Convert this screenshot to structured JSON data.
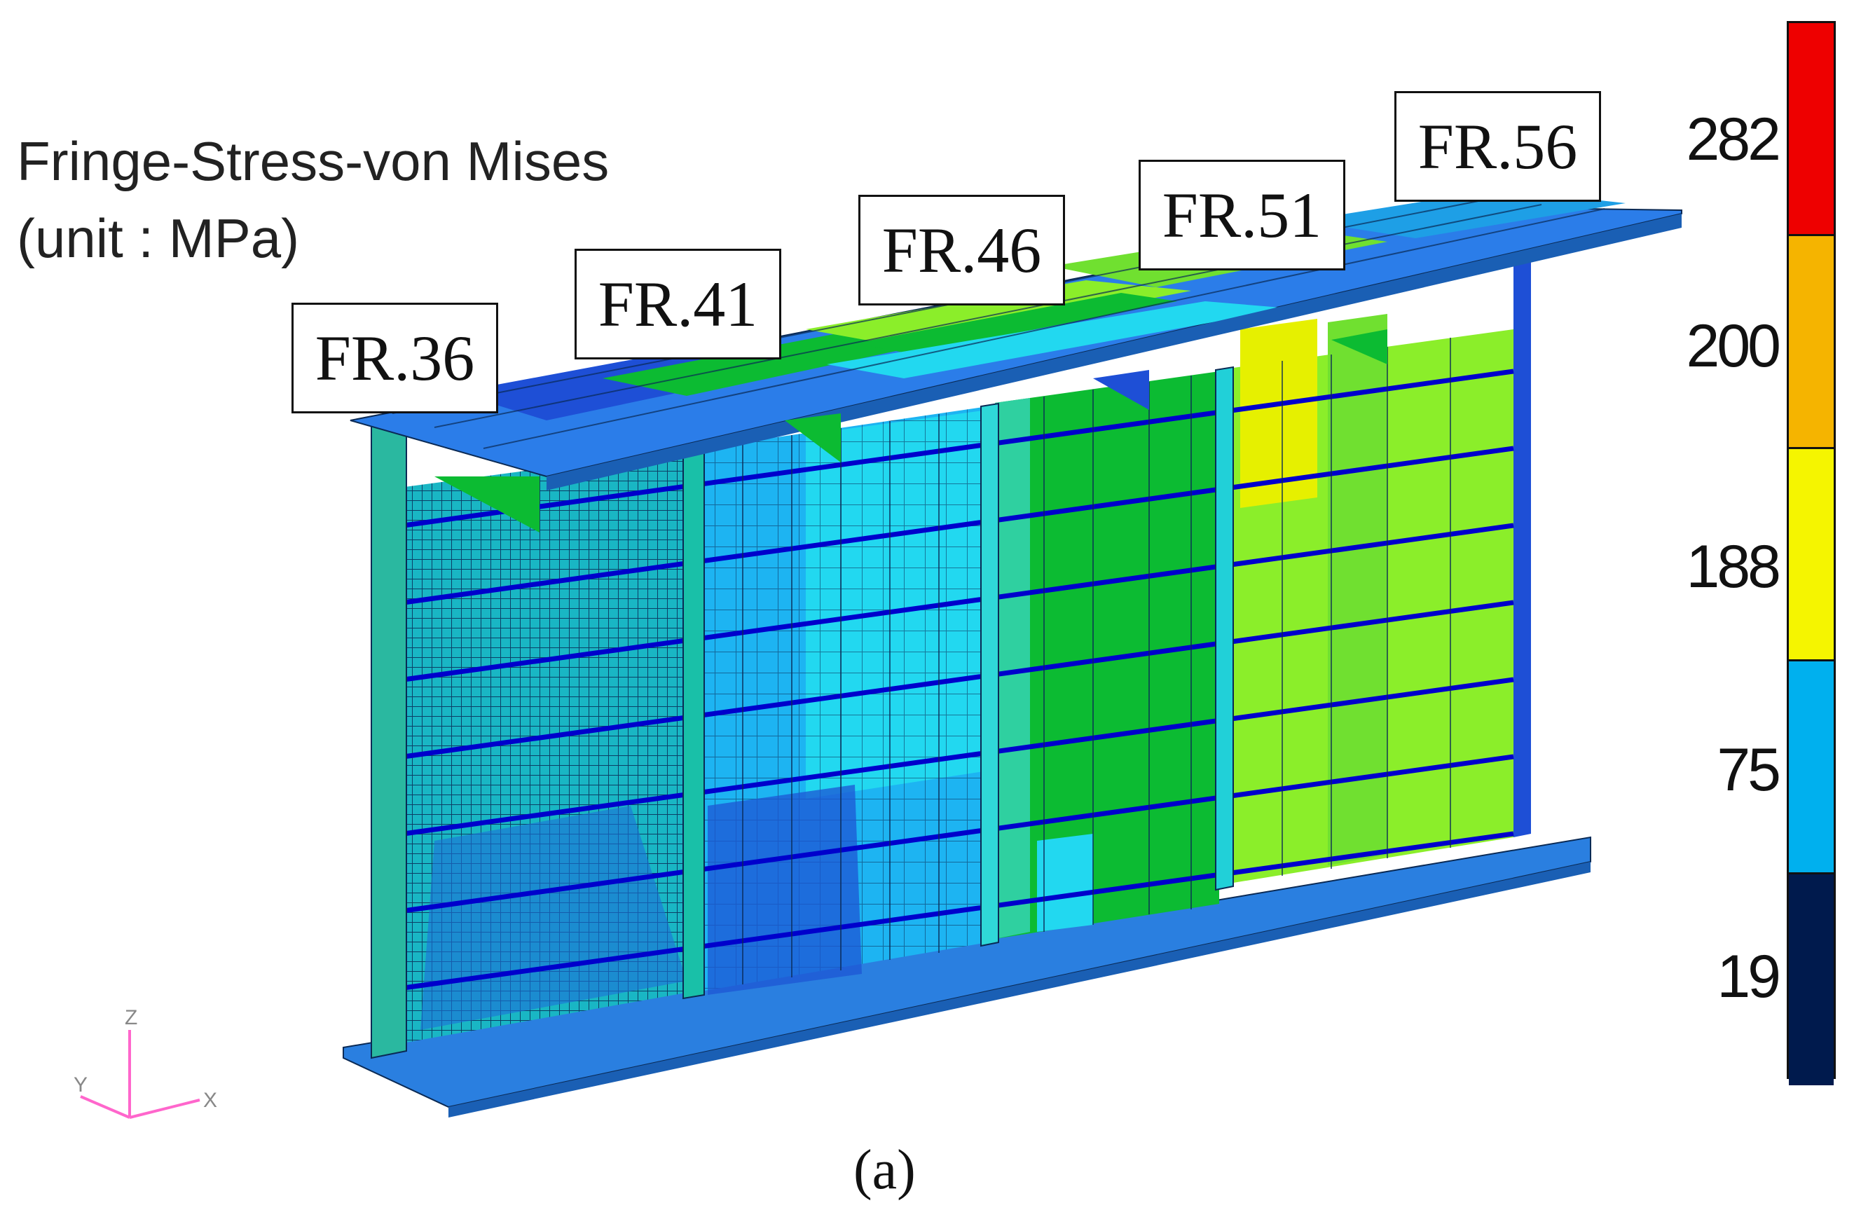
{
  "title": {
    "line1": "Fringe-Stress-von Mises",
    "line2": "(unit : MPa)"
  },
  "frame_labels": [
    "FR.36",
    "FR.41",
    "FR.46",
    "FR.51",
    "FR.56"
  ],
  "legend": {
    "values": [
      "282",
      "200",
      "188",
      "75",
      "19"
    ],
    "colors": [
      "#ee0000",
      "#f5b400",
      "#f5f500",
      "#00b0ee",
      "#001a4d"
    ]
  },
  "axis_triad": {
    "z": "Z",
    "y": "Y",
    "x": "X"
  },
  "caption": "(a)",
  "colors": {
    "deck": "#2b7de9",
    "web_blue": "#1e9fe6",
    "web_cyan": "#21d9ee",
    "web_green": "#0cbb32",
    "web_lime": "#8bee2a",
    "web_yellow": "#e6f000",
    "stiffener": "#0000cc",
    "mesh_line": "#0a2a55"
  }
}
